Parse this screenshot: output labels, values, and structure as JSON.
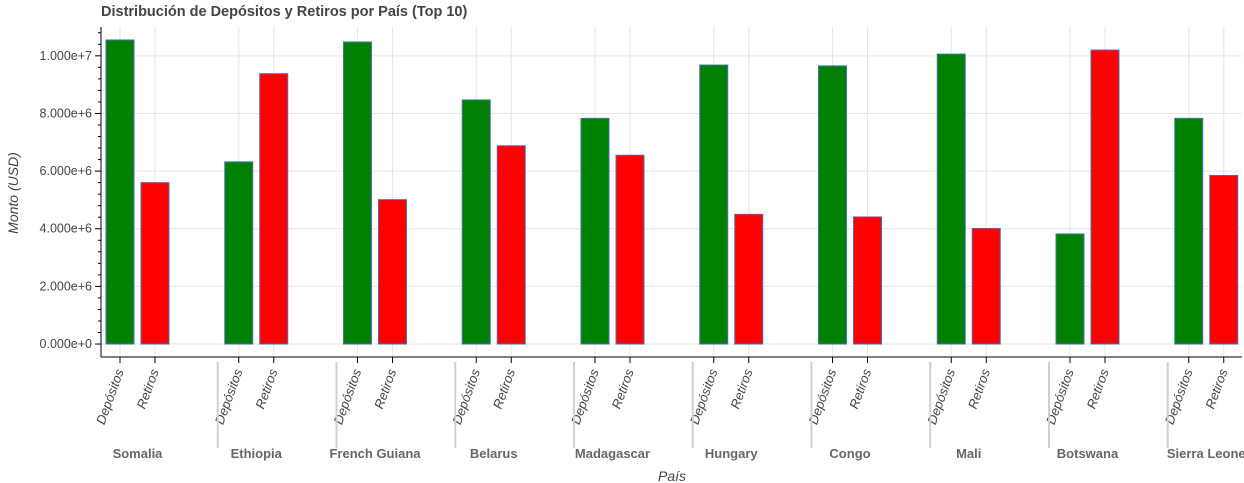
{
  "chart_data": {
    "type": "bar",
    "title": "Distribución de Depósitos y Retiros por País (Top 10)",
    "xlabel": "País",
    "ylabel": "Monto (USD)",
    "ylim": [
      -450000,
      11000000
    ],
    "y_ticks": [
      0,
      2000000,
      4000000,
      6000000,
      8000000,
      10000000
    ],
    "y_tick_labels": [
      "0.000e+0",
      "2.000e+6",
      "4.000e+6",
      "6.000e+6",
      "8.000e+6",
      "1.000e+7"
    ],
    "grid": true,
    "legend": "none",
    "categories": [
      "Somalia",
      "Ethiopia",
      "French Guiana",
      "Belarus",
      "Madagascar",
      "Hungary",
      "Congo",
      "Mali",
      "Botswana",
      "Sierra Leone"
    ],
    "series": [
      {
        "name": "Depósitos",
        "color": "#008000",
        "values": [
          10550000,
          6320000,
          10480000,
          8470000,
          7830000,
          9680000,
          9650000,
          10060000,
          3820000,
          7830000
        ]
      },
      {
        "name": "Retiros",
        "color": "#ff0000",
        "values": [
          5600000,
          9380000,
          5010000,
          6880000,
          6550000,
          4500000,
          4410000,
          4010000,
          10200000,
          5850000
        ]
      }
    ],
    "bar_outline_color": "#4a6fb5",
    "grid_color": "#e6e6e6",
    "separator_color": "#d0d0d0",
    "text_color": "#444444"
  }
}
